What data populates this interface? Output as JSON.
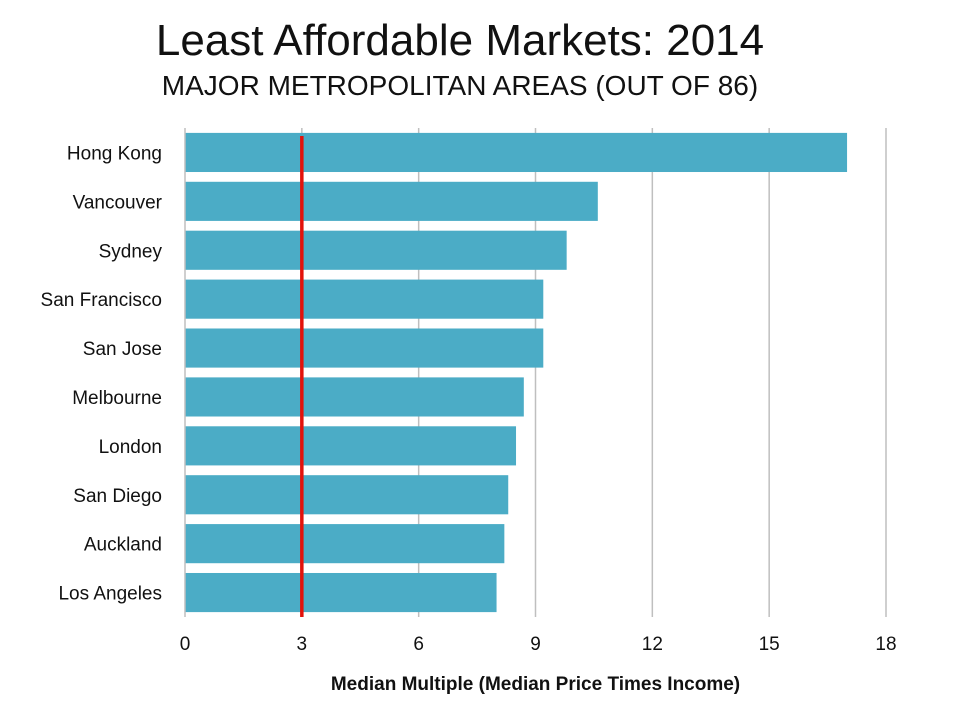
{
  "chart_data": {
    "type": "bar",
    "orientation": "horizontal",
    "title": "Least Affordable Markets: 2014",
    "subtitle": "MAJOR METROPOLITAN AREAS (OUT OF 86)",
    "xlabel": "Median Multiple (Median Price Times Income)",
    "ylabel": "",
    "categories": [
      "Hong Kong",
      "Vancouver",
      "Sydney",
      "San Francisco",
      "San Jose",
      "Melbourne",
      "London",
      "San Diego",
      "Auckland",
      "Los Angeles"
    ],
    "values": [
      17.0,
      10.6,
      9.8,
      9.2,
      9.2,
      8.7,
      8.5,
      8.3,
      8.2,
      8.0
    ],
    "xlim": [
      0,
      18
    ],
    "xticks": [
      0,
      3,
      6,
      9,
      12,
      15,
      18
    ],
    "reference_line": 3,
    "grid": true,
    "bar_color": "#4bacc6",
    "reference_line_color": "#e3120b"
  }
}
